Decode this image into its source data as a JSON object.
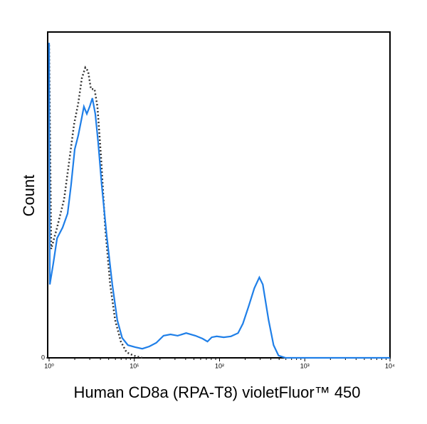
{
  "chart_data": {
    "type": "line",
    "x_label": "Human CD8a (RPA-T8) violetFluor™ 450",
    "y_label": "Count",
    "xscale": "log",
    "xlim": [
      1,
      10000
    ],
    "xticks": [
      {
        "value": 1,
        "label": "10⁰"
      },
      {
        "value": 10,
        "label": "10¹"
      },
      {
        "value": 100,
        "label": "10²"
      },
      {
        "value": 1000,
        "label": "10³"
      },
      {
        "value": 10000,
        "label": "10⁴"
      }
    ],
    "ylim": [
      0,
      100
    ],
    "yticks": [
      0
    ],
    "series": [
      {
        "color": "#333333",
        "linestyle": "dotted",
        "x": [
          1,
          1.06,
          1.24,
          1.5,
          1.75,
          1.96,
          2.2,
          2.42,
          2.66,
          2.87,
          3.1,
          3.41,
          3.69,
          4.06,
          4.55,
          5.21,
          5.96,
          6.95,
          8.1,
          9.8,
          12.4
        ],
        "values": [
          96,
          33.4,
          40,
          48.7,
          61.8,
          71.6,
          78.2,
          85.8,
          89.1,
          88,
          82.5,
          82.5,
          77.1,
          61.8,
          40,
          22.5,
          11.6,
          5,
          1.7,
          0.7,
          0
        ]
      },
      {
        "color": "#1f7fe8",
        "linestyle": "solid",
        "x": [
          1,
          1.02,
          1.12,
          1.24,
          1.44,
          1.65,
          1.81,
          2.0,
          2.2,
          2.42,
          2.56,
          2.77,
          2.99,
          3.22,
          3.48,
          3.76,
          4.14,
          4.73,
          5.52,
          6.31,
          7.21,
          8.41,
          10.2,
          12.4,
          15.0,
          18.1,
          22.0,
          26.6,
          32.2,
          40.6,
          52.1,
          63.1,
          72.1,
          80.9,
          92.6,
          112,
          136,
          165,
          188,
          220,
          256,
          293,
          322,
          376,
          430,
          492,
          596,
          10000
        ],
        "values": [
          96.7,
          22.5,
          29.0,
          36.7,
          40.0,
          44.3,
          53.1,
          64.0,
          68.3,
          73.8,
          77.1,
          74.9,
          77.1,
          79.7,
          74.9,
          66.2,
          53.1,
          37.8,
          22.5,
          11.6,
          6.1,
          3.9,
          3.3,
          2.8,
          3.5,
          4.6,
          6.8,
          7.2,
          6.8,
          7.6,
          6.8,
          5.9,
          5.0,
          6.3,
          6.6,
          6.3,
          6.6,
          7.6,
          10.5,
          15.9,
          21.4,
          24.7,
          22.5,
          11.6,
          3.9,
          0.7,
          0,
          0
        ]
      }
    ]
  }
}
